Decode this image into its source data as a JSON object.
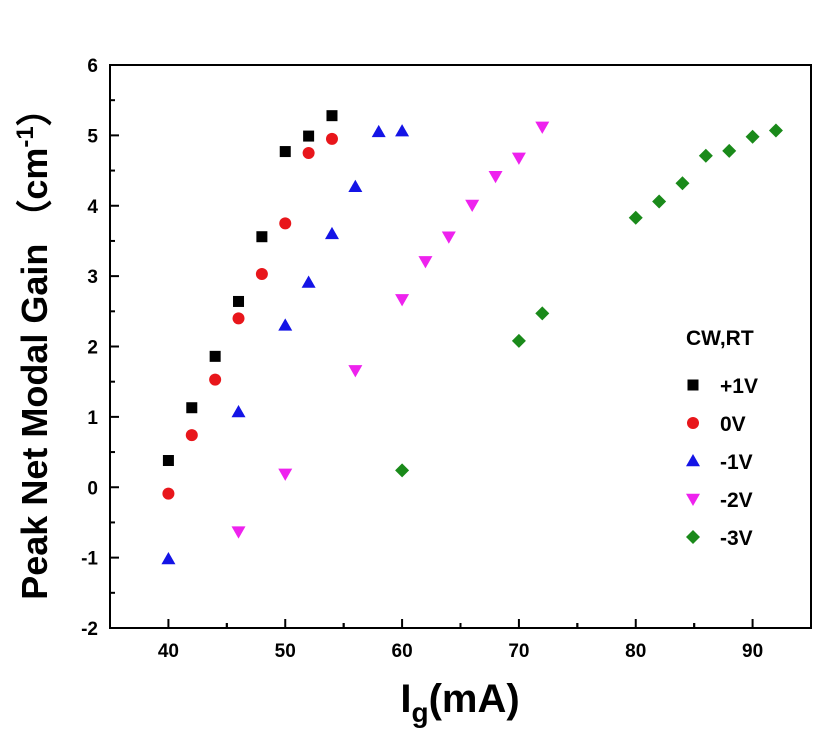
{
  "chart_data": {
    "type": "scatter",
    "title": "",
    "xlabel_main": "I",
    "xlabel_sub": "g",
    "xlabel_unit": "(mA)",
    "ylabel": "Peak Net Modal Gain",
    "ylabel_unit_open": "（cm",
    "ylabel_unit_sup": "-1",
    "ylabel_unit_close": "）",
    "xlim": [
      35,
      95
    ],
    "ylim": [
      -2,
      6
    ],
    "xticks": [
      40,
      50,
      60,
      70,
      80,
      90
    ],
    "yticks": [
      -2,
      -1,
      0,
      1,
      2,
      3,
      4,
      5,
      6
    ],
    "xtick_labels": [
      "40",
      "50",
      "60",
      "70",
      "80",
      "90"
    ],
    "ytick_labels": [
      "-2",
      "-1",
      "0",
      "1",
      "2",
      "3",
      "4",
      "5",
      "6"
    ],
    "grid": false,
    "legend_title": "CW,RT",
    "legend_position": "right",
    "series": [
      {
        "name": "+1V",
        "marker": "square",
        "color": "#000000",
        "x": [
          40,
          42,
          44,
          46,
          48,
          50,
          52,
          54
        ],
        "y": [
          0.38,
          1.13,
          1.86,
          2.64,
          3.56,
          4.77,
          4.99,
          5.28
        ]
      },
      {
        "name": "0V",
        "marker": "circle",
        "color": "#e8161b",
        "x": [
          40,
          42,
          44,
          46,
          48,
          50,
          52,
          54
        ],
        "y": [
          -0.09,
          0.74,
          1.53,
          2.4,
          3.03,
          3.75,
          4.75,
          4.95
        ]
      },
      {
        "name": "-1V",
        "marker": "triangle-up",
        "color": "#1414e6",
        "x": [
          40,
          46,
          50,
          52,
          54,
          56,
          58,
          60
        ],
        "y": [
          -1.02,
          1.07,
          2.3,
          2.91,
          3.6,
          4.27,
          5.05,
          5.06
        ]
      },
      {
        "name": "-2V",
        "marker": "triangle-down",
        "color": "#ee22ee",
        "x": [
          46,
          50,
          56,
          60,
          62,
          64,
          66,
          68,
          70,
          72
        ],
        "y": [
          -0.63,
          0.19,
          1.66,
          2.67,
          3.21,
          3.56,
          4.01,
          4.42,
          4.68,
          5.12
        ]
      },
      {
        "name": "-3V",
        "marker": "diamond",
        "color": "#1a8a1a",
        "x": [
          60,
          70,
          72,
          80,
          82,
          84,
          86,
          88,
          90,
          92
        ],
        "y": [
          0.24,
          2.08,
          2.47,
          3.83,
          4.06,
          4.32,
          4.71,
          4.78,
          4.98,
          5.07
        ]
      }
    ]
  }
}
